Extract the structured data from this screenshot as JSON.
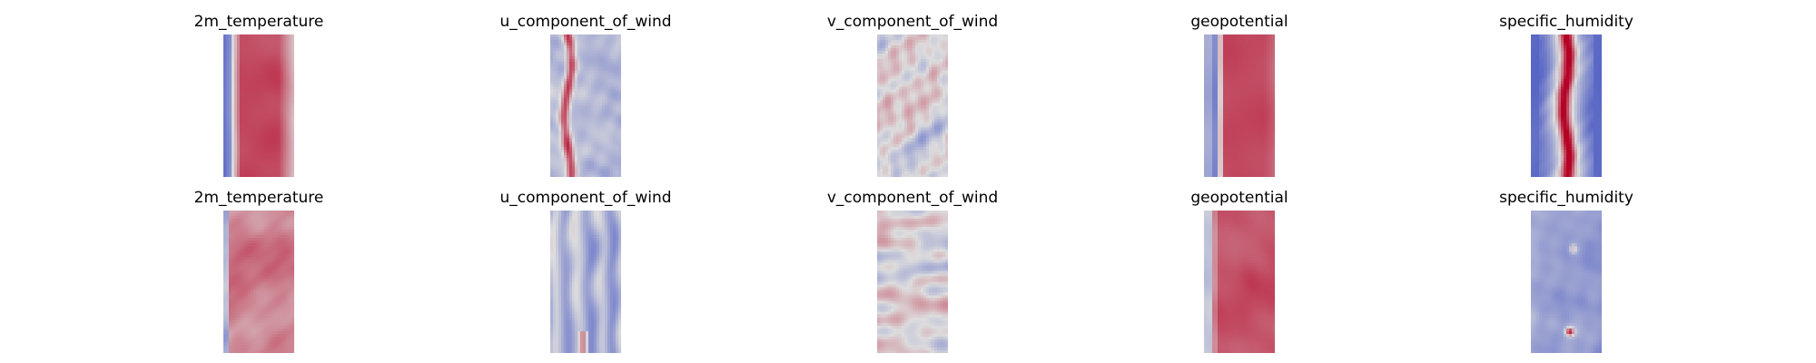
{
  "chart_data": [
    {
      "type": "heatmap",
      "title": "2m_temperature",
      "colormap": "coolwarm",
      "colors": {
        "low": "#3b4cc0",
        "mid": "#dddddd",
        "high": "#b40426"
      },
      "axes_visible": false,
      "pattern": "warm-band",
      "seed": 11
    },
    {
      "type": "heatmap",
      "title": "u_component_of_wind",
      "colormap": "coolwarm",
      "colors": {
        "low": "#3b4cc0",
        "mid": "#dddddd",
        "high": "#b40426"
      },
      "axes_visible": false,
      "pattern": "streaky",
      "seed": 23
    },
    {
      "type": "heatmap",
      "title": "v_component_of_wind",
      "colormap": "coolwarm",
      "colors": {
        "low": "#3b4cc0",
        "mid": "#dddddd",
        "high": "#b40426"
      },
      "axes_visible": false,
      "pattern": "noisy",
      "seed": 37
    },
    {
      "type": "heatmap",
      "title": "geopotential",
      "colormap": "coolwarm",
      "colors": {
        "low": "#3b4cc0",
        "mid": "#dddddd",
        "high": "#b40426"
      },
      "axes_visible": false,
      "pattern": "smooth-band",
      "seed": 41
    },
    {
      "type": "heatmap",
      "title": "specific_humidity",
      "colormap": "coolwarm",
      "colors": {
        "low": "#3b4cc0",
        "mid": "#dddddd",
        "high": "#b40426"
      },
      "axes_visible": false,
      "pattern": "center-spike",
      "seed": 53
    },
    {
      "type": "heatmap",
      "title": "2m_temperature",
      "colormap": "coolwarm",
      "colors": {
        "low": "#3b4cc0",
        "mid": "#dddddd",
        "high": "#b40426"
      },
      "axes_visible": false,
      "pattern": "blotchy-warm",
      "seed": 61
    },
    {
      "type": "heatmap",
      "title": "u_component_of_wind",
      "colormap": "coolwarm",
      "colors": {
        "low": "#3b4cc0",
        "mid": "#dddddd",
        "high": "#b40426"
      },
      "axes_visible": false,
      "pattern": "streaky-cool",
      "seed": 71
    },
    {
      "type": "heatmap",
      "title": "v_component_of_wind",
      "colormap": "coolwarm",
      "colors": {
        "low": "#3b4cc0",
        "mid": "#dddddd",
        "high": "#b40426"
      },
      "axes_visible": false,
      "pattern": "noisy",
      "seed": 83
    },
    {
      "type": "heatmap",
      "title": "geopotential",
      "colormap": "coolwarm",
      "colors": {
        "low": "#3b4cc0",
        "mid": "#dddddd",
        "high": "#b40426"
      },
      "axes_visible": false,
      "pattern": "smooth-band-2",
      "seed": 97
    },
    {
      "type": "heatmap",
      "title": "specific_humidity",
      "colormap": "coolwarm",
      "colors": {
        "low": "#3b4cc0",
        "mid": "#dddddd",
        "high": "#b40426"
      },
      "axes_visible": false,
      "pattern": "cool-spots",
      "seed": 101
    }
  ]
}
